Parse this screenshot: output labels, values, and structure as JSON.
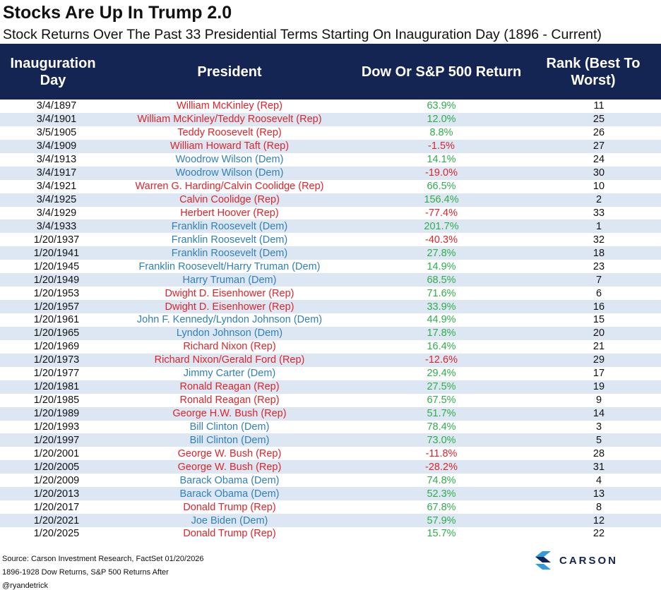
{
  "header": {
    "title": "Stocks Are Up In Trump 2.0",
    "subtitle": "Stock Returns Over The Past 33 Presidential Terms Starting On Inauguration Day (1896 - Current)"
  },
  "table": {
    "columns": [
      "Inauguration Day",
      "President",
      "Dow Or S&P 500 Return",
      "Rank (Best To Worst)"
    ],
    "rows": [
      [
        "3/4/1897",
        "William McKinley (Rep)",
        "63.9%",
        "11"
      ],
      [
        "3/4/1901",
        "William McKinley/Teddy Roosevelt (Rep)",
        "12.0%",
        "25"
      ],
      [
        "3/5/1905",
        "Teddy Roosevelt (Rep)",
        "8.8%",
        "26"
      ],
      [
        "3/4/1909",
        "William Howard Taft (Rep)",
        "-1.5%",
        "27"
      ],
      [
        "3/4/1913",
        "Woodrow Wilson (Dem)",
        "14.1%",
        "24"
      ],
      [
        "3/4/1917",
        "Woodrow Wilson (Dem)",
        "-19.0%",
        "30"
      ],
      [
        "3/4/1921",
        "Warren G. Harding/Calvin Coolidge (Rep)",
        "66.5%",
        "10"
      ],
      [
        "3/4/1925",
        "Calvin Coolidge (Rep)",
        "156.4%",
        "2"
      ],
      [
        "3/4/1929",
        "Herbert Hoover (Rep)",
        "-77.4%",
        "33"
      ],
      [
        "3/4/1933",
        "Franklin Roosevelt (Dem)",
        "201.7%",
        "1"
      ],
      [
        "1/20/1937",
        "Franklin Roosevelt (Dem)",
        "-40.3%",
        "32"
      ],
      [
        "1/20/1941",
        "Franklin Roosevelt (Dem)",
        "27.8%",
        "18"
      ],
      [
        "1/20/1945",
        "Franklin Roosevelt/Harry Truman (Dem)",
        "14.9%",
        "23"
      ],
      [
        "1/20/1949",
        "Harry Truman (Dem)",
        "68.5%",
        "7"
      ],
      [
        "1/20/1953",
        "Dwight D. Eisenhower (Rep)",
        "71.6%",
        "6"
      ],
      [
        "1/20/1957",
        "Dwight D. Eisenhower (Rep)",
        "33.9%",
        "16"
      ],
      [
        "1/20/1961",
        "John F. Kennedy/Lyndon Johnson (Dem)",
        "44.9%",
        "15"
      ],
      [
        "1/20/1965",
        "Lyndon Johnson (Dem)",
        "17.8%",
        "20"
      ],
      [
        "1/20/1969",
        "Richard Nixon (Rep)",
        "16.4%",
        "21"
      ],
      [
        "1/20/1973",
        "Richard Nixon/Gerald Ford (Rep)",
        "-12.6%",
        "29"
      ],
      [
        "1/20/1977",
        "Jimmy Carter (Dem)",
        "29.4%",
        "17"
      ],
      [
        "1/20/1981",
        "Ronald Reagan (Rep)",
        "27.5%",
        "19"
      ],
      [
        "1/20/1985",
        "Ronald Reagan (Rep)",
        "67.5%",
        "9"
      ],
      [
        "1/20/1989",
        "George H.W. Bush (Rep)",
        "51.7%",
        "14"
      ],
      [
        "1/20/1993",
        "Bill Clinton (Dem)",
        "78.4%",
        "3"
      ],
      [
        "1/20/1997",
        "Bill Clinton (Dem)",
        "73.0%",
        "5"
      ],
      [
        "1/20/2001",
        "George W. Bush (Rep)",
        "-11.8%",
        "28"
      ],
      [
        "1/20/2005",
        "George W. Bush (Rep)",
        "-28.2%",
        "31"
      ],
      [
        "1/20/2009",
        "Barack Obama (Dem)",
        "74.8%",
        "4"
      ],
      [
        "1/20/2013",
        "Barack Obama (Dem)",
        "52.3%",
        "13"
      ],
      [
        "1/20/2017",
        "Donald Trump (Rep)",
        "67.8%",
        "8"
      ],
      [
        "1/20/2021",
        "Joe Biden (Dem)",
        "57.9%",
        "12"
      ],
      [
        "1/20/2025",
        "Donald Trump (Rep)",
        "15.7%",
        "22"
      ]
    ],
    "name_colors": [
      "#e0242a",
      "#e0242a",
      "#e0242a",
      "#e0242a",
      "#2f80bd",
      "#2f80bd",
      "#e0242a",
      "#e0242a",
      "#e0242a",
      "#2f80bd",
      "#2f80bd",
      "#2f80bd",
      "#2f80bd",
      "#2f80bd",
      "#e0242a",
      "#e0242a",
      "#2f80bd",
      "#2f80bd",
      "#e0242a",
      "#e0242a",
      "#2f80bd",
      "#e0242a",
      "#e0242a",
      "#e0242a",
      "#2f80bd",
      "#2f80bd",
      "#e0242a",
      "#e0242a",
      "#2f80bd",
      "#2f80bd",
      "#e0242a",
      "#2f80bd",
      "#e0242a"
    ],
    "positive_color": "#2eae4a",
    "negative_color": "#e0242a"
  },
  "footer": {
    "lines": [
      "Source: Carson Investment Research, FactSet 01/20/2026",
      "1896-1928 Dow Returns, S&P 500 Returns After",
      "@ryandetrick"
    ],
    "logo": "CARSON"
  }
}
